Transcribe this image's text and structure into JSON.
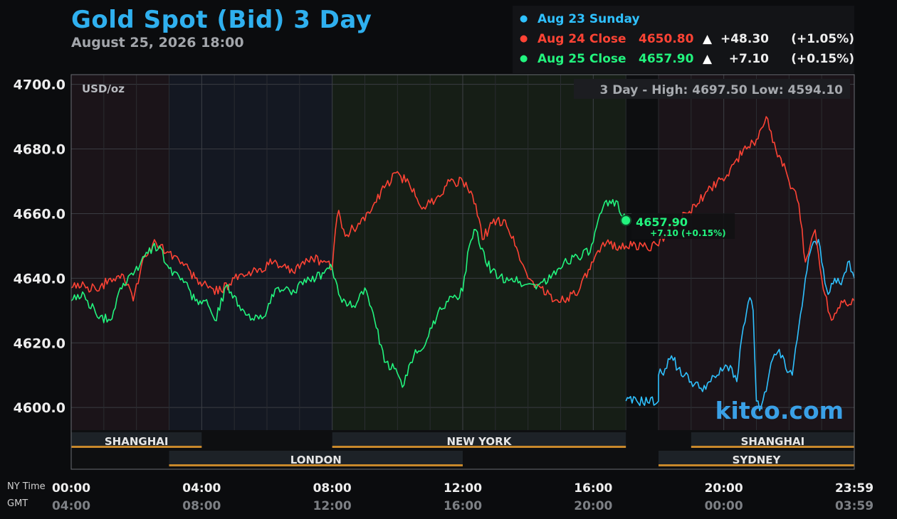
{
  "header": {
    "title": "Gold Spot (Bid) 3 Day",
    "subtitle": "August 25, 2026 18:00"
  },
  "legend": [
    {
      "label": "Aug 23 Sunday",
      "value": "",
      "arrow": "",
      "change": "",
      "percent": "",
      "color": "#2fc1ff"
    },
    {
      "label": "Aug 24 Close",
      "value": "4650.80",
      "arrow": "▲",
      "change": "+48.30",
      "percent": "(+1.05%)",
      "color": "#ff4335"
    },
    {
      "label": "Aug 25 Close",
      "value": "4657.90",
      "arrow": "▲",
      "change": "+7.10",
      "percent": "(+0.15%)",
      "color": "#22f47e"
    }
  ],
  "chart_data": {
    "type": "line",
    "unit_label": "USD/oz",
    "high_low_label": "3 Day - High: 4697.50  Low: 4594.10",
    "watermark": "kitco.com",
    "ylim": [
      4593,
      4703
    ],
    "y_ticks": [
      "4700.0",
      "4680.0",
      "4660.0",
      "4640.0",
      "4620.0",
      "4600.0"
    ],
    "y_tick_values": [
      4700,
      4680,
      4660,
      4640,
      4620,
      4600
    ],
    "x_hours_range": [
      0,
      24
    ],
    "x_ticks": [
      {
        "ny": "00:00",
        "gmt": "04:00",
        "h": 0
      },
      {
        "ny": "04:00",
        "gmt": "08:00",
        "h": 4
      },
      {
        "ny": "08:00",
        "gmt": "12:00",
        "h": 8
      },
      {
        "ny": "12:00",
        "gmt": "16:00",
        "h": 12
      },
      {
        "ny": "16:00",
        "gmt": "20:00",
        "h": 16
      },
      {
        "ny": "20:00",
        "gmt": "00:00",
        "h": 20
      },
      {
        "ny": "23:59",
        "gmt": "03:59",
        "h": 24
      }
    ],
    "x_axis_labels": {
      "ny": "NY Time",
      "gmt": "GMT"
    },
    "sessions": [
      {
        "name": "SHANGHAI",
        "start": 0,
        "end": 4,
        "row": 0
      },
      {
        "name": "NEW YORK",
        "start": 8,
        "end": 17,
        "row": 0
      },
      {
        "name": "SHANGHAI",
        "start": 19,
        "end": 24,
        "row": 0
      },
      {
        "name": "LONDON",
        "start": 3,
        "end": 12,
        "row": 1
      },
      {
        "name": "SYDNEY",
        "start": 18,
        "end": 24,
        "row": 1
      }
    ],
    "current": {
      "value": "4657.90",
      "change": "+7.10 (+0.15%)",
      "h": 17
    },
    "series": [
      {
        "name": "Aug 23 Sunday",
        "color": "#2fc1ff",
        "points": [
          [
            17,
            4602
          ],
          [
            18,
            4602
          ],
          [
            18.0,
            4610
          ],
          [
            18.2,
            4612
          ],
          [
            18.4,
            4616
          ],
          [
            18.6,
            4612
          ],
          [
            18.8,
            4610
          ],
          [
            19.0,
            4608
          ],
          [
            19.3,
            4606
          ],
          [
            19.6,
            4608
          ],
          [
            19.8,
            4610
          ],
          [
            20.0,
            4612
          ],
          [
            20.2,
            4613
          ],
          [
            20.4,
            4608
          ],
          [
            20.6,
            4625
          ],
          [
            20.8,
            4634
          ],
          [
            20.9,
            4630
          ],
          [
            21.0,
            4602
          ],
          [
            21.1,
            4599
          ],
          [
            21.3,
            4605
          ],
          [
            21.5,
            4615
          ],
          [
            21.7,
            4618
          ],
          [
            21.9,
            4612
          ],
          [
            22.1,
            4610
          ],
          [
            22.3,
            4625
          ],
          [
            22.5,
            4640
          ],
          [
            22.7,
            4650
          ],
          [
            22.9,
            4652
          ],
          [
            23.0,
            4645
          ],
          [
            23.2,
            4635
          ],
          [
            23.4,
            4640
          ],
          [
            23.6,
            4638
          ],
          [
            23.8,
            4645
          ],
          [
            24.0,
            4640
          ]
        ]
      },
      {
        "name": "Aug 24 Close",
        "color": "#ff4335",
        "points": [
          [
            0,
            4637
          ],
          [
            0.4,
            4638
          ],
          [
            0.8,
            4636
          ],
          [
            1.2,
            4640
          ],
          [
            1.6,
            4641
          ],
          [
            1.9,
            4633
          ],
          [
            2.2,
            4646
          ],
          [
            2.6,
            4651
          ],
          [
            3.0,
            4648
          ],
          [
            3.4,
            4645
          ],
          [
            3.8,
            4640
          ],
          [
            4.2,
            4637
          ],
          [
            4.6,
            4636
          ],
          [
            5.0,
            4640
          ],
          [
            5.4,
            4641
          ],
          [
            5.8,
            4643
          ],
          [
            6.2,
            4645
          ],
          [
            6.6,
            4643
          ],
          [
            7.0,
            4643
          ],
          [
            7.4,
            4646
          ],
          [
            7.8,
            4645
          ],
          [
            8.0,
            4643
          ],
          [
            8.1,
            4655
          ],
          [
            8.2,
            4661
          ],
          [
            8.4,
            4653
          ],
          [
            8.8,
            4657
          ],
          [
            9.2,
            4661
          ],
          [
            9.6,
            4668
          ],
          [
            10.0,
            4673
          ],
          [
            10.4,
            4668
          ],
          [
            10.8,
            4662
          ],
          [
            11.2,
            4665
          ],
          [
            11.6,
            4670
          ],
          [
            12.0,
            4670
          ],
          [
            12.4,
            4663
          ],
          [
            12.6,
            4652
          ],
          [
            12.9,
            4657
          ],
          [
            13.3,
            4658
          ],
          [
            13.7,
            4648
          ],
          [
            14.0,
            4640
          ],
          [
            14.4,
            4637
          ],
          [
            14.8,
            4633
          ],
          [
            15.2,
            4634
          ],
          [
            15.6,
            4637
          ],
          [
            16.0,
            4645
          ],
          [
            16.4,
            4651
          ],
          [
            16.8,
            4650
          ],
          [
            17.0,
            4650
          ],
          [
            18.0,
            4650
          ],
          [
            18.3,
            4655
          ],
          [
            18.6,
            4658
          ],
          [
            18.9,
            4660
          ],
          [
            19.2,
            4663
          ],
          [
            19.5,
            4667
          ],
          [
            19.8,
            4670
          ],
          [
            20.1,
            4672
          ],
          [
            20.4,
            4677
          ],
          [
            20.7,
            4680
          ],
          [
            21.0,
            4683
          ],
          [
            21.3,
            4690
          ],
          [
            21.5,
            4682
          ],
          [
            21.7,
            4678
          ],
          [
            22.0,
            4670
          ],
          [
            22.3,
            4663
          ],
          [
            22.5,
            4645
          ],
          [
            22.8,
            4655
          ],
          [
            23.0,
            4640
          ],
          [
            23.3,
            4627
          ],
          [
            23.6,
            4633
          ],
          [
            24.0,
            4633
          ]
        ]
      },
      {
        "name": "Aug 25 Close",
        "color": "#22f47e",
        "points": [
          [
            0,
            4633
          ],
          [
            0.4,
            4635
          ],
          [
            0.8,
            4628
          ],
          [
            1.2,
            4627
          ],
          [
            1.5,
            4637
          ],
          [
            1.9,
            4641
          ],
          [
            2.3,
            4648
          ],
          [
            2.7,
            4650
          ],
          [
            3.0,
            4643
          ],
          [
            3.4,
            4640
          ],
          [
            3.8,
            4633
          ],
          [
            4.1,
            4633
          ],
          [
            4.4,
            4627
          ],
          [
            4.8,
            4638
          ],
          [
            5.2,
            4630
          ],
          [
            5.6,
            4627
          ],
          [
            6.0,
            4630
          ],
          [
            6.3,
            4637
          ],
          [
            6.7,
            4636
          ],
          [
            7.1,
            4638
          ],
          [
            7.5,
            4640
          ],
          [
            7.9,
            4643
          ],
          [
            8.0,
            4643
          ],
          [
            8.2,
            4635
          ],
          [
            8.6,
            4631
          ],
          [
            9.0,
            4637
          ],
          [
            9.3,
            4627
          ],
          [
            9.6,
            4614
          ],
          [
            9.9,
            4612
          ],
          [
            10.2,
            4607
          ],
          [
            10.5,
            4616
          ],
          [
            10.9,
            4621
          ],
          [
            11.3,
            4631
          ],
          [
            11.7,
            4634
          ],
          [
            12.0,
            4636
          ],
          [
            12.2,
            4650
          ],
          [
            12.4,
            4655
          ],
          [
            12.7,
            4645
          ],
          [
            13.1,
            4640
          ],
          [
            13.5,
            4640
          ],
          [
            13.9,
            4638
          ],
          [
            14.3,
            4638
          ],
          [
            14.7,
            4640
          ],
          [
            15.1,
            4645
          ],
          [
            15.5,
            4647
          ],
          [
            15.9,
            4648
          ],
          [
            16.3,
            4662
          ],
          [
            16.7,
            4664
          ],
          [
            17.0,
            4658
          ]
        ]
      }
    ]
  }
}
